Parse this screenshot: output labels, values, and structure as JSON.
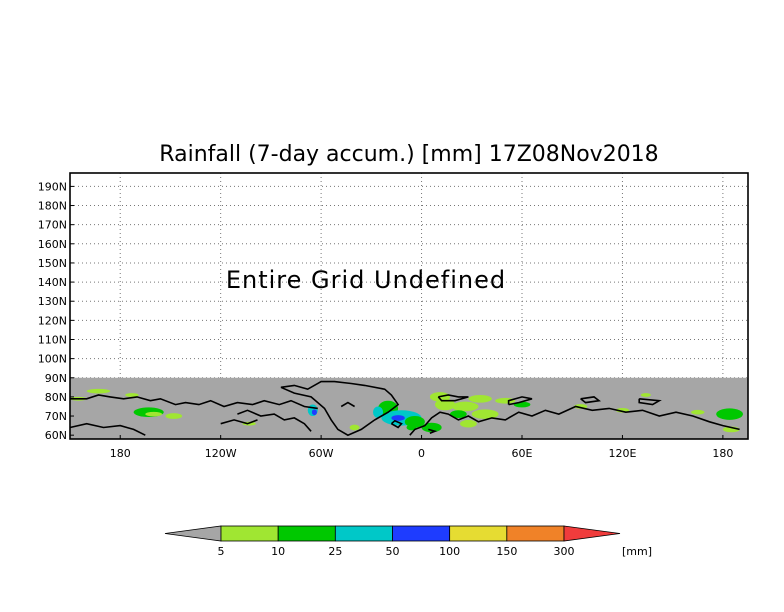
{
  "chart_data": {
    "type": "heatmap",
    "title": "Rainfall (7-day accum.) [mm] 17Z08Nov2018",
    "annotation": "Entire Grid Undefined",
    "xlabel": "",
    "ylabel": "",
    "x_tick_labels": [
      "180",
      "120W",
      "60W",
      "0",
      "60E",
      "120E",
      "180"
    ],
    "x_tick_values": [
      -180,
      -120,
      -60,
      0,
      60,
      120,
      180
    ],
    "y_tick_labels": [
      "60N",
      "70N",
      "80N",
      "90N",
      "100N",
      "110N",
      "120N",
      "130N",
      "140N",
      "150N",
      "160N",
      "170N",
      "180N",
      "190N"
    ],
    "y_tick_values": [
      60,
      70,
      80,
      90,
      100,
      110,
      120,
      130,
      140,
      150,
      160,
      170,
      180,
      190
    ],
    "xlim": [
      -210,
      195
    ],
    "ylim": [
      58,
      197
    ],
    "data_region": {
      "lat_min": 60,
      "lat_max": 90,
      "fill_color_below_5": "#a6a6a6"
    },
    "grid": true,
    "colorbar": {
      "levels": [
        "5",
        "10",
        "25",
        "50",
        "100",
        "150",
        "300"
      ],
      "colors": [
        "#a6a6a6",
        "#a0e632",
        "#00c800",
        "#00c8c8",
        "#1e3cff",
        "#e6dc32",
        "#f08228",
        "#f03c3c"
      ],
      "unit": "[mm]"
    }
  }
}
